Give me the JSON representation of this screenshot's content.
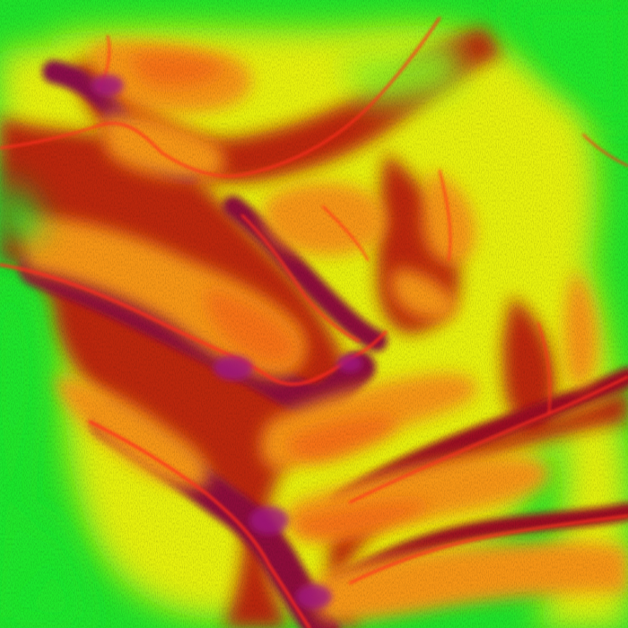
{
  "map": {
    "type": "shaded-relief elevation map",
    "colormap": [
      "#00ff2a",
      "#7dff18",
      "#ddff10",
      "#f6d010",
      "#f78a12",
      "#e83312",
      "#9e0e12",
      "#8a0a4a",
      "#b21a86"
    ],
    "colors": {
      "lowland_green": "#1fe22a",
      "slope_yellow": "#e6f00f",
      "ridge_orange": "#f59516",
      "ridge_core": "#f56a18",
      "valley_red": "#b8120f",
      "deep_valley_magenta": "#a0157c",
      "stream_line": "#ff2d1c"
    },
    "labels": []
  }
}
